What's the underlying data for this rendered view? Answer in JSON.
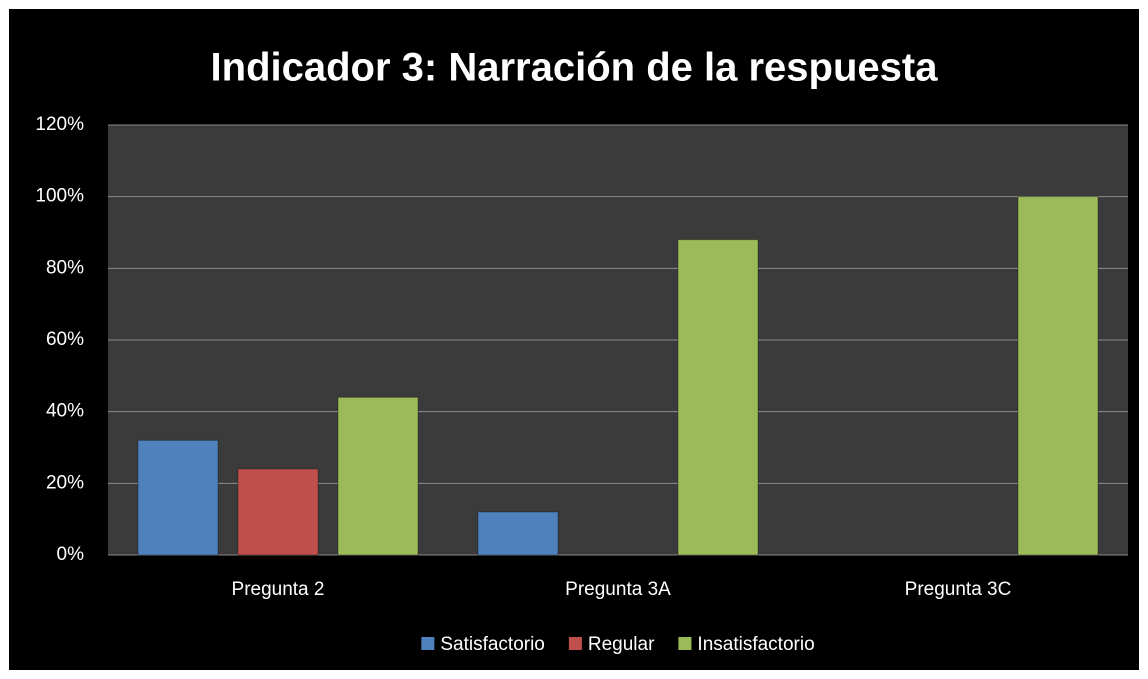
{
  "chart_data": {
    "type": "bar",
    "title": "Indicador 3: Narración de la respuesta",
    "categories": [
      "Pregunta 2",
      "Pregunta 3A",
      "Pregunta 3C"
    ],
    "series": [
      {
        "name": "Satisfactorio",
        "color": "#4f81bd",
        "values": [
          32,
          12,
          0
        ]
      },
      {
        "name": "Regular",
        "color": "#c0504d",
        "values": [
          24,
          0,
          0
        ]
      },
      {
        "name": "Insatisfactorio",
        "color": "#9bbb59",
        "values": [
          44,
          88,
          100
        ]
      }
    ],
    "ylim": [
      0,
      120
    ],
    "yticks": [
      {
        "value": 0,
        "label": "0%"
      },
      {
        "value": 20,
        "label": "20%"
      },
      {
        "value": 40,
        "label": "40%"
      },
      {
        "value": 60,
        "label": "60%"
      },
      {
        "value": 80,
        "label": "80%"
      },
      {
        "value": 100,
        "label": "100%"
      },
      {
        "value": 120,
        "label": "120%"
      }
    ],
    "grid": true,
    "legend": "bottom"
  }
}
